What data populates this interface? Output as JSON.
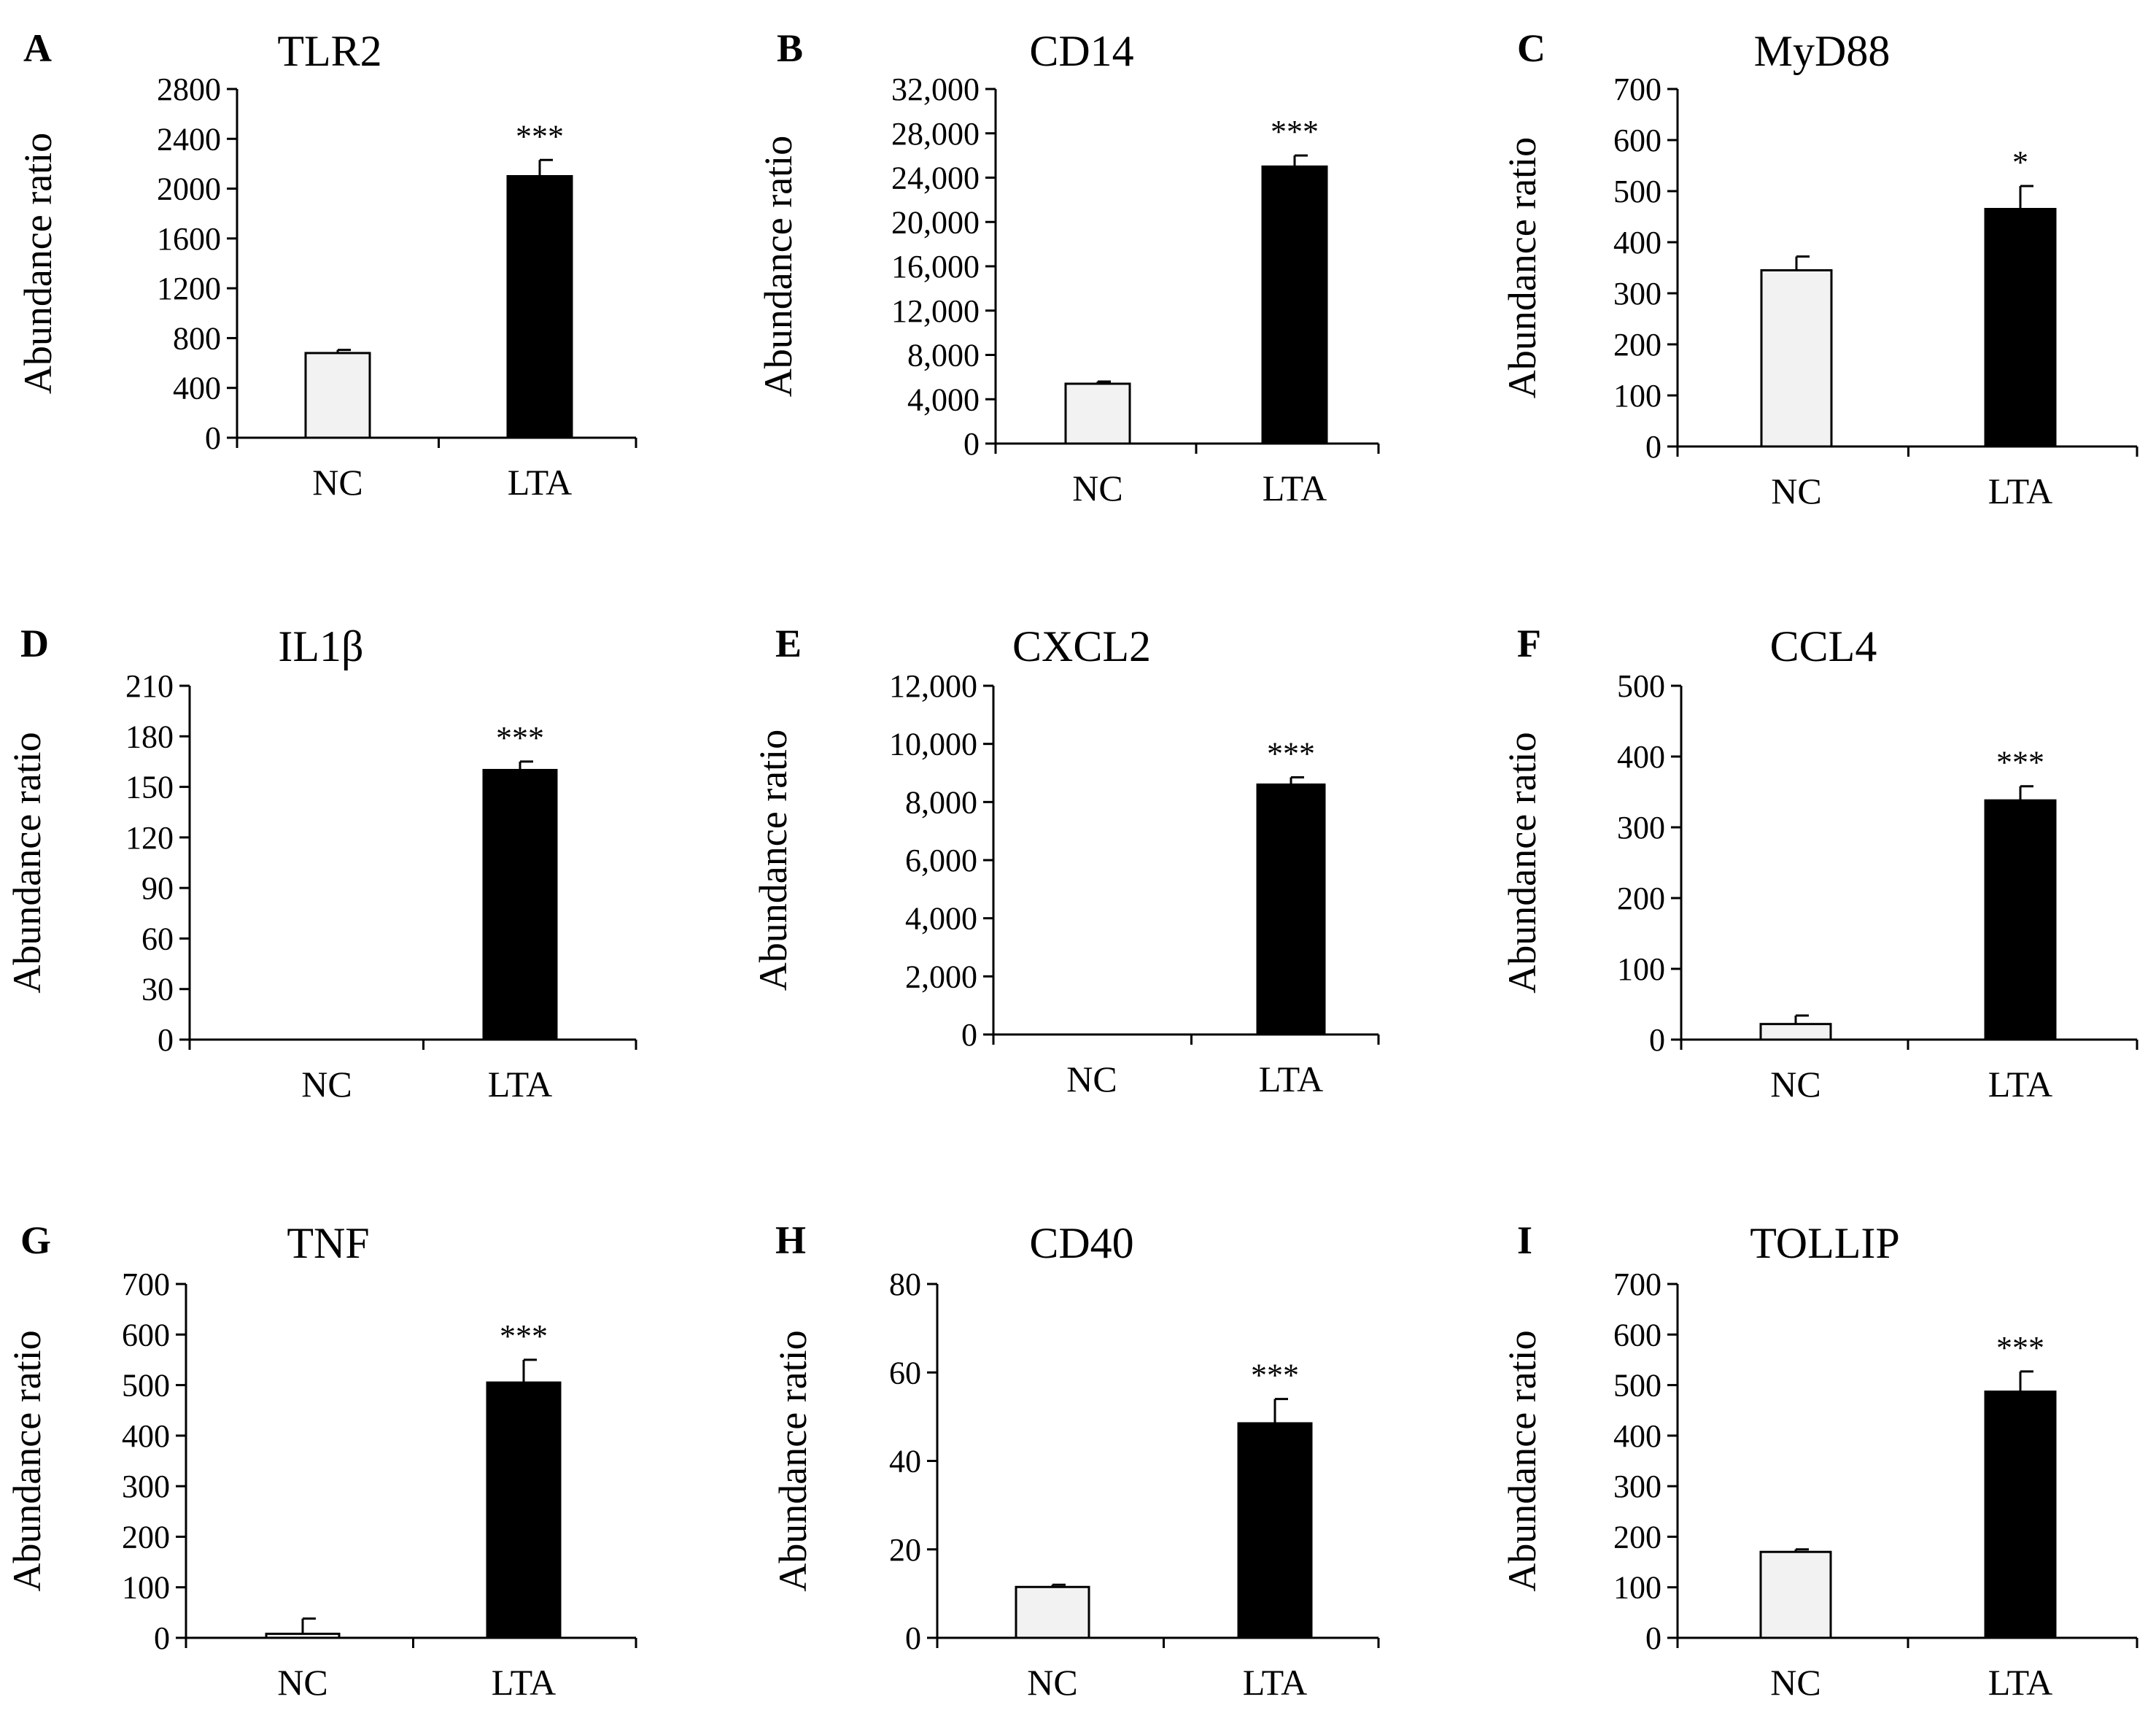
{
  "figure": {
    "ylabel": "Abundance ratio",
    "categories": [
      "NC",
      "LTA"
    ]
  },
  "colors": {
    "nc_fill": "#f2f2f2",
    "lta_fill": "#000000",
    "stroke": "#000000"
  },
  "chart_data": [
    {
      "type": "bar",
      "panel": "A",
      "title": "TLR2",
      "categories": [
        "NC",
        "LTA"
      ],
      "values": [
        680,
        2100
      ],
      "errors": [
        25,
        130
      ],
      "significance": [
        "",
        "***"
      ],
      "ylim": [
        0,
        2800
      ],
      "yticks": [
        0,
        400,
        800,
        1200,
        1600,
        2000,
        2400,
        2800
      ],
      "ytick_labels": [
        "0",
        "400",
        "800",
        "1200",
        "1600",
        "2000",
        "2400",
        "2800"
      ],
      "ylabel": "Abundance ratio"
    },
    {
      "type": "bar",
      "panel": "B",
      "title": "CD14",
      "categories": [
        "NC",
        "LTA"
      ],
      "values": [
        5400,
        25000
      ],
      "errors": [
        200,
        1000
      ],
      "significance": [
        "",
        "***"
      ],
      "ylim": [
        0,
        32000
      ],
      "yticks": [
        0,
        4000,
        8000,
        12000,
        16000,
        20000,
        24000,
        28000,
        32000
      ],
      "ytick_labels": [
        "0",
        "4,000",
        "8,000",
        "12,000",
        "16,000",
        "20,000",
        "24,000",
        "28,000",
        "32,000"
      ],
      "ylabel": "Abundance ratio"
    },
    {
      "type": "bar",
      "panel": "C",
      "title": "MyD88",
      "categories": [
        "NC",
        "LTA"
      ],
      "values": [
        345,
        465
      ],
      "errors": [
        27,
        45
      ],
      "significance": [
        "",
        "*"
      ],
      "ylim": [
        0,
        700
      ],
      "yticks": [
        0,
        100,
        200,
        300,
        400,
        500,
        600,
        700
      ],
      "ytick_labels": [
        "0",
        "100",
        "200",
        "300",
        "400",
        "500",
        "600",
        "700"
      ],
      "ylabel": "Abundance ratio"
    },
    {
      "type": "bar",
      "panel": "D",
      "title": "IL1β",
      "categories": [
        "NC",
        "LTA"
      ],
      "values": [
        0,
        160
      ],
      "errors": [
        0,
        5
      ],
      "significance": [
        "",
        "***"
      ],
      "ylim": [
        0,
        210
      ],
      "yticks": [
        0,
        30,
        60,
        90,
        120,
        150,
        180,
        210
      ],
      "ytick_labels": [
        "0",
        "30",
        "60",
        "90",
        "120",
        "150",
        "180",
        "210"
      ],
      "ylabel": "Abundance ratio"
    },
    {
      "type": "bar",
      "panel": "E",
      "title": "CXCL2",
      "categories": [
        "NC",
        "LTA"
      ],
      "values": [
        0,
        8600
      ],
      "errors": [
        0,
        250
      ],
      "significance": [
        "",
        "***"
      ],
      "ylim": [
        0,
        12000
      ],
      "yticks": [
        0,
        2000,
        4000,
        6000,
        8000,
        10000,
        12000
      ],
      "ytick_labels": [
        "0",
        "2,000",
        "4,000",
        "6,000",
        "8,000",
        "10,000",
        "12,000"
      ],
      "ylabel": "Abundance ratio"
    },
    {
      "type": "bar",
      "panel": "F",
      "title": "CCL4",
      "categories": [
        "NC",
        "LTA"
      ],
      "values": [
        22,
        338
      ],
      "errors": [
        12,
        20
      ],
      "significance": [
        "",
        "***"
      ],
      "ylim": [
        0,
        500
      ],
      "yticks": [
        0,
        100,
        200,
        300,
        400,
        500
      ],
      "ytick_labels": [
        "0",
        "100",
        "200",
        "300",
        "400",
        "500"
      ],
      "ylabel": "Abundance ratio"
    },
    {
      "type": "bar",
      "panel": "G",
      "title": "TNF",
      "categories": [
        "NC",
        "LTA"
      ],
      "values": [
        8,
        505
      ],
      "errors": [
        30,
        45
      ],
      "significance": [
        "",
        "***"
      ],
      "ylim": [
        0,
        700
      ],
      "yticks": [
        0,
        100,
        200,
        300,
        400,
        500,
        600,
        700
      ],
      "ytick_labels": [
        "0",
        "100",
        "200",
        "300",
        "400",
        "500",
        "600",
        "700"
      ],
      "ylabel": "Abundance ratio"
    },
    {
      "type": "bar",
      "panel": "H",
      "title": "CD40",
      "categories": [
        "NC",
        "LTA"
      ],
      "values": [
        11.5,
        48.5
      ],
      "errors": [
        0.5,
        5.5
      ],
      "significance": [
        "",
        "***"
      ],
      "ylim": [
        0,
        80
      ],
      "yticks": [
        0,
        20,
        40,
        60,
        80
      ],
      "ytick_labels": [
        "0",
        "20",
        "40",
        "60",
        "80"
      ],
      "ylabel": "Abundance ratio"
    },
    {
      "type": "bar",
      "panel": "I",
      "title": "TOLLIP",
      "categories": [
        "NC",
        "LTA"
      ],
      "values": [
        170,
        487
      ],
      "errors": [
        5,
        40
      ],
      "significance": [
        "",
        "***"
      ],
      "ylim": [
        0,
        700
      ],
      "yticks": [
        0,
        100,
        200,
        300,
        400,
        500,
        600,
        700
      ],
      "ytick_labels": [
        "0",
        "100",
        "200",
        "300",
        "400",
        "500",
        "600",
        "700"
      ],
      "ylabel": "Abundance ratio"
    }
  ]
}
